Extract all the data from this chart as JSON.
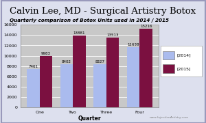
{
  "title_main": "Calvin Lee, MD - Surgical Artistry Botox",
  "chart_title": "Quarterly comparison of Botox Units used in 2014 / 2015",
  "categories": [
    "One",
    "Two",
    "Three",
    "Four"
  ],
  "values_2014": [
    7461,
    8402,
    8327,
    11638
  ],
  "values_2015": [
    9983,
    13881,
    13513,
    15216
  ],
  "xlabel": "Quarter",
  "ylim": [
    0,
    16000
  ],
  "yticks": [
    0,
    2000,
    4000,
    6000,
    8000,
    10000,
    12000,
    14000,
    16000
  ],
  "color_2014": "#aabbee",
  "color_2015": "#7b1040",
  "legend_2014": "[2014]",
  "legend_2015": "[2015]",
  "watermark": "www.InjectionArtistry.com",
  "bg_chart": "#c8c8c8",
  "bg_outer": "#dde0ee",
  "title_fontsize": 9.5,
  "chart_title_fontsize": 5.2,
  "bar_width": 0.38,
  "label_fontsize": 4.0,
  "tick_fontsize": 4.5,
  "xlabel_fontsize": 5.5
}
